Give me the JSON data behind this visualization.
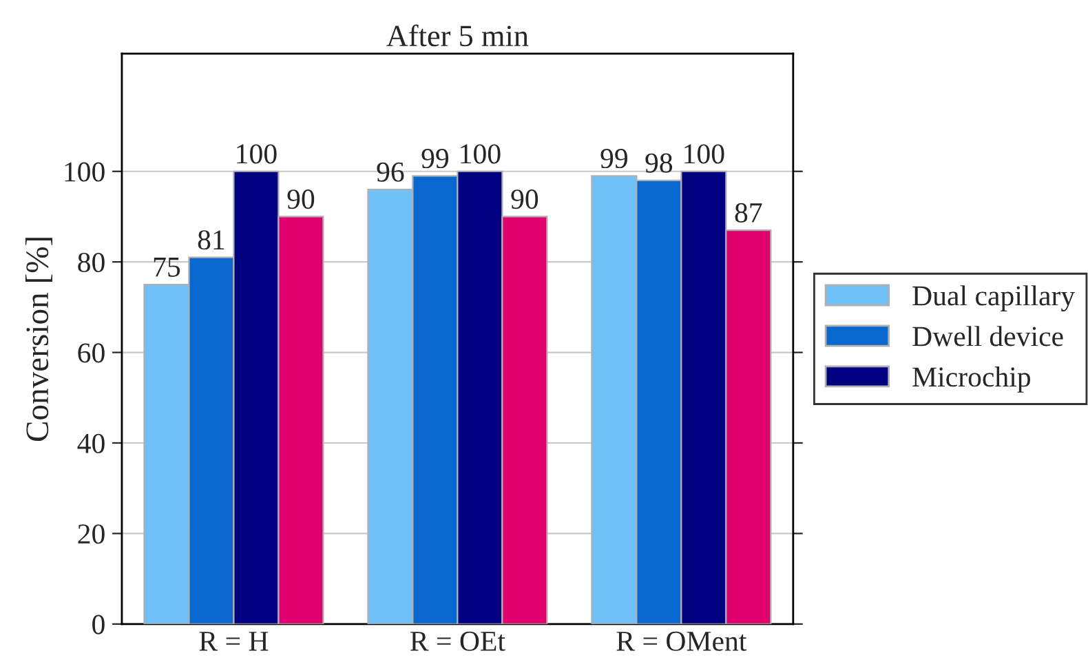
{
  "chart_data": {
    "type": "bar",
    "title": "After 5 min",
    "ylabel": "Conversion [%]",
    "categories": [
      "R = H",
      "R = OEt",
      "R = OMent"
    ],
    "series": [
      {
        "name": "Dual capillary",
        "color": "#70c0f8",
        "values": [
          75,
          96,
          99
        ]
      },
      {
        "name": "Dwell device",
        "color": "#0868d0",
        "values": [
          81,
          99,
          98
        ]
      },
      {
        "name": "Microchip",
        "color": "#000080",
        "values": [
          100,
          100,
          100
        ]
      },
      {
        "color": "#e0006e",
        "values": [
          90,
          90,
          87
        ]
      }
    ],
    "ylim": [
      0,
      126
    ],
    "yticks": [
      0,
      20,
      40,
      60,
      80,
      100
    ],
    "grid": "y",
    "legend": "right",
    "data_labels": true
  }
}
